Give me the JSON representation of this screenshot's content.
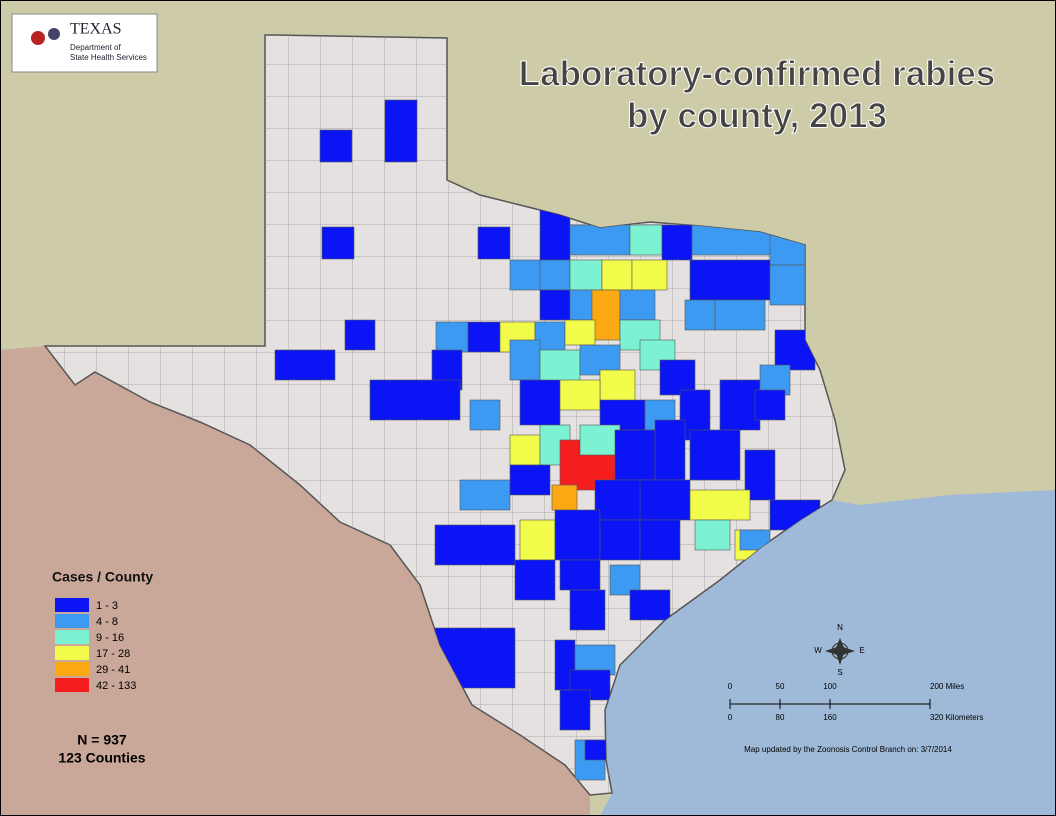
{
  "logo": {
    "name": "TEXAS",
    "line1": "Department of",
    "line2": "State Health Services"
  },
  "title": {
    "line1": "Laboratory-confirmed rabies",
    "line2": "by county, 2013"
  },
  "legend": {
    "title": "Cases / County",
    "items": [
      {
        "label": "1 - 3",
        "color": "#0a14f5"
      },
      {
        "label": "4 - 8",
        "color": "#3d9af2"
      },
      {
        "label": "9 - 16",
        "color": "#7cf2d2"
      },
      {
        "label": "17 - 28",
        "color": "#f2fb4a"
      },
      {
        "label": "29 - 41",
        "color": "#fba912"
      },
      {
        "label": "42 - 133",
        "color": "#f51d1d"
      }
    ]
  },
  "summary": {
    "total": "N = 937",
    "counties": "123 Counties"
  },
  "compass": {
    "n": "N",
    "s": "S",
    "e": "E",
    "w": "W"
  },
  "scale": {
    "miles": [
      "0",
      "50",
      "100",
      "200 Miles"
    ],
    "kilometers": [
      "0",
      "80",
      "160",
      "320 Kilometers"
    ]
  },
  "note": "Map updated by the Zoonosis Control Branch on: 3/7/2014"
}
